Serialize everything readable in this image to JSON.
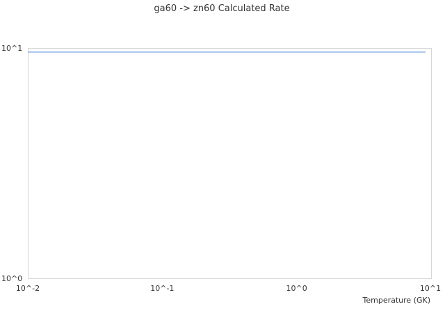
{
  "chart_data": {
    "type": "line",
    "title": "ga60 -> zn60 Calculated Rate",
    "xlabel": "Temperature (GK)",
    "ylabel": "",
    "x_scale": "log",
    "y_scale": "log",
    "xlim": [
      0.01,
      10
    ],
    "ylim": [
      1,
      10
    ],
    "x_ticks": [
      {
        "value": 0.01,
        "label": "10^-2"
      },
      {
        "value": 0.1,
        "label": "10^-1"
      },
      {
        "value": 1,
        "label": "10^0"
      },
      {
        "value": 10,
        "label": "10^1"
      }
    ],
    "y_ticks": [
      {
        "value": 1,
        "label": "10^0"
      },
      {
        "value": 10,
        "label": "10^1"
      }
    ],
    "grid": false,
    "series": [
      {
        "color": "#6a9fe0",
        "x": [
          0.01,
          9.1
        ],
        "y": [
          9.6,
          9.6
        ]
      }
    ]
  }
}
